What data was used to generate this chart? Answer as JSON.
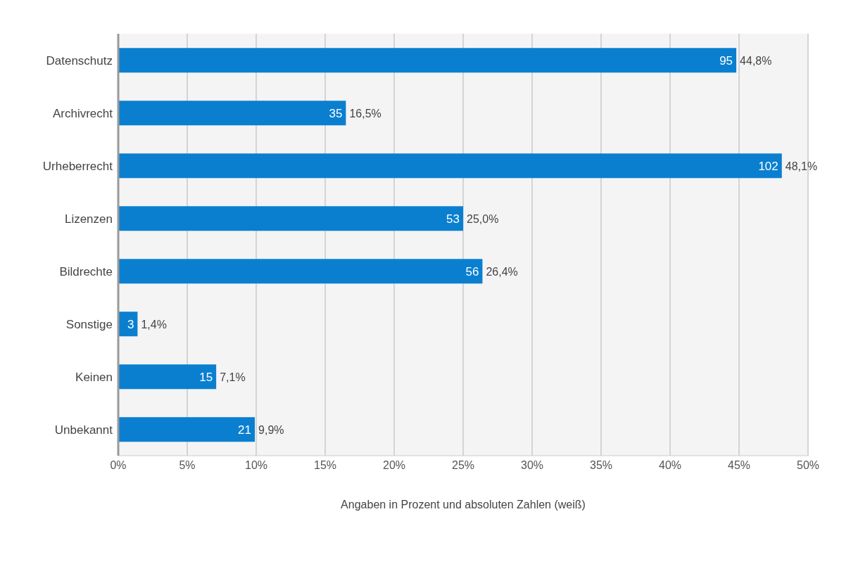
{
  "chart_data": {
    "type": "bar",
    "orientation": "horizontal",
    "xlabel": "Angaben in Prozent und absoluten Zahlen (weiß)",
    "categories": [
      "Datenschutz",
      "Archivrecht",
      "Urheberrecht",
      "Lizenzen",
      "Bildrechte",
      "Sonstige",
      "Keinen",
      "Unbekannt"
    ],
    "values": [
      44.8,
      16.5,
      48.1,
      25.0,
      26.4,
      1.4,
      7.1,
      9.9
    ],
    "value_labels": [
      "44,8%",
      "16,5%",
      "48,1%",
      "25,0%",
      "26,4%",
      "1,4%",
      "7,1%",
      "9,9%"
    ],
    "color": "#0a7fd0",
    "xlim": [
      0,
      50
    ],
    "xticks": [
      {
        "value": 0,
        "label": "0%"
      },
      {
        "value": 5,
        "label": "5%"
      },
      {
        "value": 10,
        "label": "10%"
      },
      {
        "value": 15,
        "label": "15%"
      },
      {
        "value": 20,
        "label": "20%"
      },
      {
        "value": 25,
        "label": "25%"
      },
      {
        "value": 30,
        "label": "30%"
      },
      {
        "value": 35,
        "label": "35%"
      },
      {
        "value": 40,
        "label": "40%"
      },
      {
        "value": 45,
        "label": "45%"
      },
      {
        "value": 50,
        "label": "50%"
      }
    ],
    "grid": "x",
    "annotations": [
      {
        "text": "95",
        "x": 44.8,
        "y": "Datenschutz"
      },
      {
        "text": "35",
        "x": 16.5,
        "y": "Archivrecht"
      },
      {
        "text": "102",
        "x": 48.1,
        "y": "Urheberrecht"
      },
      {
        "text": "53",
        "x": 25.0,
        "y": "Lizenzen"
      },
      {
        "text": "56",
        "x": 26.4,
        "y": "Bildrechte"
      },
      {
        "text": "3",
        "x": 1.4,
        "y": "Sonstige"
      },
      {
        "text": "15",
        "x": 7.1,
        "y": "Keinen"
      },
      {
        "text": "21",
        "x": 9.9,
        "y": "Unbekannt"
      }
    ]
  }
}
